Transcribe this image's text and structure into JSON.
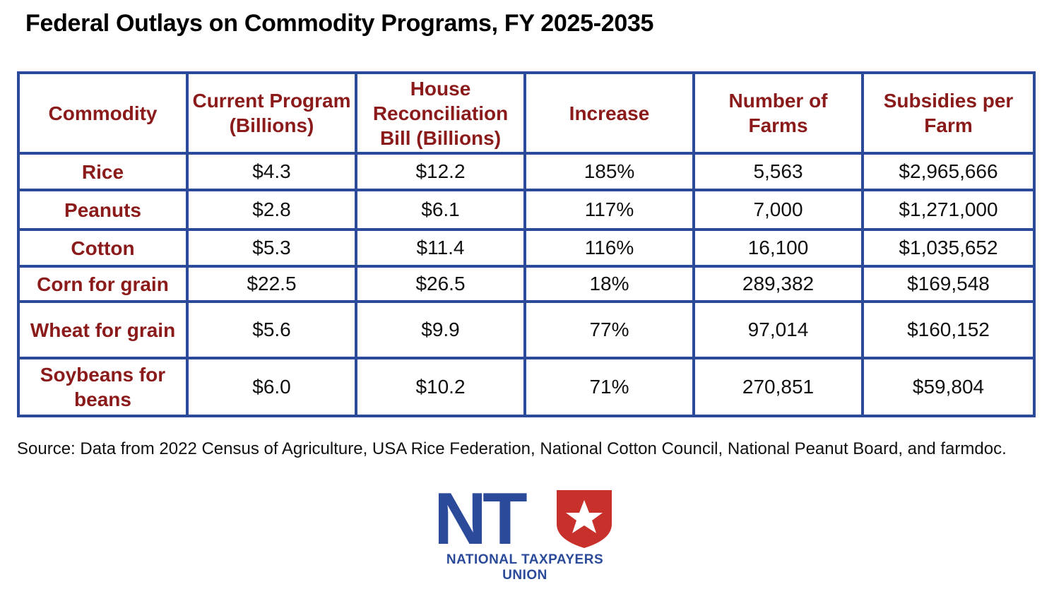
{
  "title": "Federal Outlays on Commodity Programs, FY 2025-2035",
  "table": {
    "headers": [
      "Commodity",
      "Current Program (Billions)",
      "House Reconciliation Bill (Billions)",
      "Increase",
      "Number of Farms",
      "Subsidies per Farm"
    ],
    "rows": [
      {
        "commodity": "Rice",
        "current": "$4.3",
        "house": "$12.2",
        "increase": "185%",
        "farms": "5,563",
        "per_farm": "$2,965,666"
      },
      {
        "commodity": "Peanuts",
        "current": "$2.8",
        "house": "$6.1",
        "increase": "117%",
        "farms": "7,000",
        "per_farm": "$1,271,000"
      },
      {
        "commodity": "Cotton",
        "current": "$5.3",
        "house": "$11.4",
        "increase": "116%",
        "farms": "16,100",
        "per_farm": "$1,035,652"
      },
      {
        "commodity": "Corn for grain",
        "current": "$22.5",
        "house": "$26.5",
        "increase": "18%",
        "farms": "289,382",
        "per_farm": "$169,548"
      },
      {
        "commodity": "Wheat for grain",
        "current": "$5.6",
        "house": "$9.9",
        "increase": "77%",
        "farms": "97,014",
        "per_farm": "$160,152"
      },
      {
        "commodity": "Soybeans for beans",
        "current": "$6.0",
        "house": "$10.2",
        "increase": "71%",
        "farms": "270,851",
        "per_farm": "$59,804"
      }
    ]
  },
  "source": "Source: Data from 2022 Census of Agriculture, USA Rice Federation, National Cotton Council, National Peanut Board, and farmdoc.",
  "logo": {
    "letters": "NT",
    "caption": "NATIONAL TAXPAYERS UNION",
    "icon": "star-shield-icon"
  },
  "colors": {
    "border": "#2b4a9a",
    "header_text": "#8b1a1a",
    "logo_blue": "#2b4a9a",
    "logo_red": "#c8302c"
  }
}
